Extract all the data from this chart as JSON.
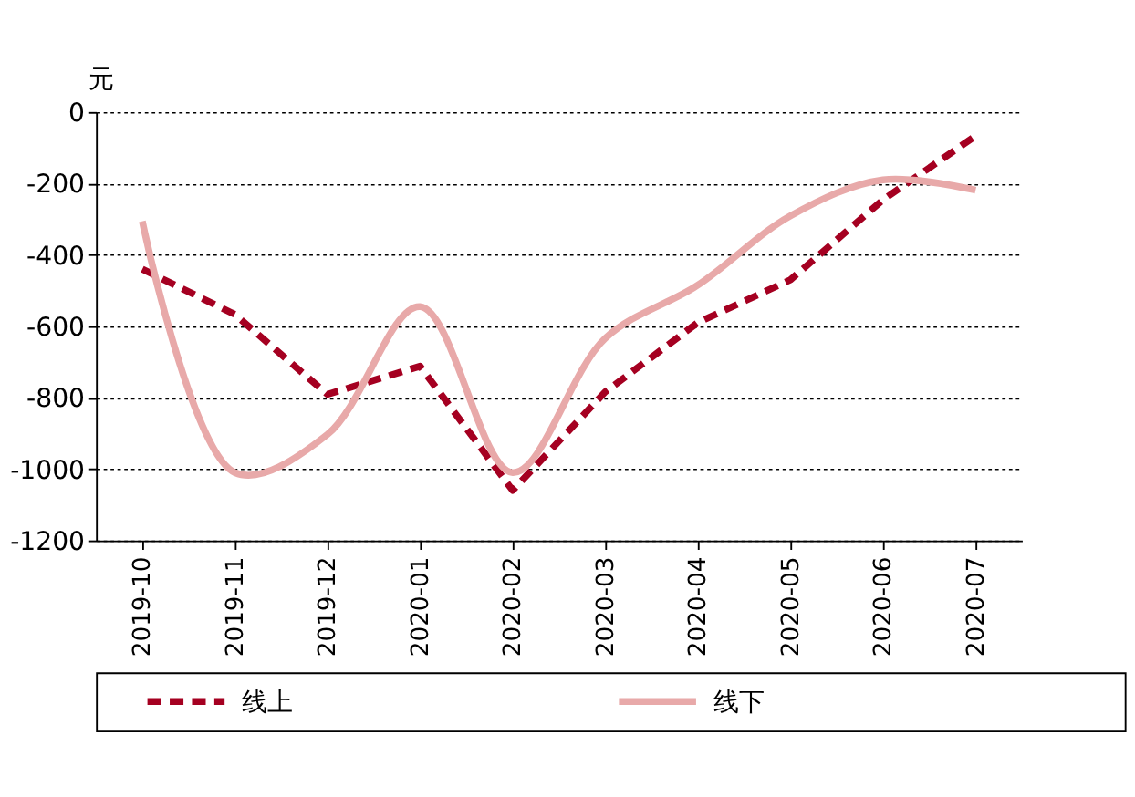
{
  "chart_data": {
    "type": "line",
    "ylabel": "元",
    "categories": [
      "2019-10",
      "2019-11",
      "2019-12",
      "2020-01",
      "2020-02",
      "2020-03",
      "2020-04",
      "2020-05",
      "2020-06",
      "2020-07"
    ],
    "series": [
      {
        "name": "线上",
        "color": "#a50021",
        "line_style": "dashed",
        "values": [
          -440,
          -567,
          -791,
          -712,
          -1060,
          -784,
          -590,
          -470,
          -246,
          -67
        ]
      },
      {
        "name": "线下",
        "color": "#e8a9a9",
        "line_style": "solid",
        "values": [
          -306,
          -1010,
          -903,
          -545,
          -1010,
          -634,
          -485,
          -291,
          -190,
          -219
        ]
      }
    ],
    "ylim": [
      -1200,
      0
    ],
    "yticks": [
      -1200,
      -1000,
      -800,
      -600,
      -400,
      -200,
      0
    ],
    "grid": "y",
    "legend": "bottom",
    "marker": "none"
  }
}
